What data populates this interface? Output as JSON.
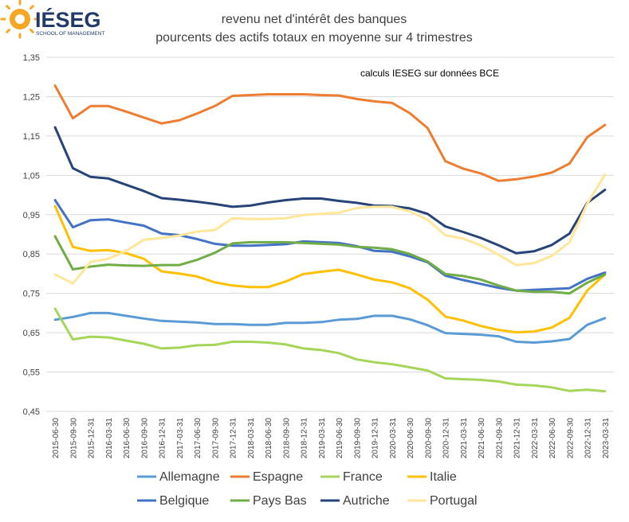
{
  "logo": {
    "name": "IÉSEG",
    "tagline": "SCHOOL OF MANAGEMENT"
  },
  "colors": {
    "Allemagne": "#5B9BD5",
    "Espagne": "#ED7D31",
    "France": "#A5D65A",
    "Italie": "#FFC000",
    "Belgique": "#4472C4",
    "Pays Bas": "#70AD47",
    "Autriche": "#264478",
    "Portugal": "#FFE699",
    "grid": "#D9D9D9",
    "logo": "#F5A623"
  },
  "chart_data": {
    "type": "line",
    "title": "revenu net d'intérêt des banques",
    "subtitle": "pourcents des actifs totaux en moyenne sur 4 trimestres",
    "annotation": "calculs IESEG sur données BCE",
    "xlabel": "",
    "ylabel": "",
    "ylim": [
      0.45,
      1.35
    ],
    "ytick_values": [
      0.45,
      0.55,
      0.65,
      0.75,
      0.85,
      0.95,
      1.05,
      1.15,
      1.25,
      1.35
    ],
    "yticks": [
      "0,45",
      "0,55",
      "0,65",
      "0,75",
      "0,85",
      "0,95",
      "1,05",
      "1,15",
      "1,25",
      "1,35"
    ],
    "grid": true,
    "legend_position": "bottom",
    "categories": [
      "2015-06-30",
      "2015-09-30",
      "2015-12-31",
      "2016-03-31",
      "2016-06-30",
      "2016-09-30",
      "2016-12-31",
      "2017-03-31",
      "2017-06-30",
      "2017-09-30",
      "2017-12-31",
      "2018-03-31",
      "2018-06-30",
      "2018-09-30",
      "2018-12-31",
      "2019-03-31",
      "2019-06-30",
      "2019-09-30",
      "2019-12-31",
      "2020-03-31",
      "2020-06-30",
      "2020-09-30",
      "2020-12-31",
      "2021-03-31",
      "2021-06-30",
      "2021-09-30",
      "2021-12-31",
      "2022-03-31",
      "2022-06-30",
      "2022-09-30",
      "2022-12-31",
      "2023-03-31"
    ],
    "series": [
      {
        "name": "Allemagne",
        "values": [
          0.683,
          0.69,
          0.7,
          0.7,
          0.693,
          0.686,
          0.68,
          0.678,
          0.676,
          0.672,
          0.672,
          0.67,
          0.67,
          0.675,
          0.675,
          0.677,
          0.683,
          0.685,
          0.693,
          0.693,
          0.684,
          0.669,
          0.649,
          0.647,
          0.645,
          0.641,
          0.627,
          0.625,
          0.628,
          0.634,
          0.67,
          0.687
        ]
      },
      {
        "name": "Espagne",
        "values": [
          1.278,
          1.195,
          1.226,
          1.226,
          1.212,
          1.197,
          1.182,
          1.19,
          1.207,
          1.226,
          1.252,
          1.254,
          1.256,
          1.256,
          1.256,
          1.254,
          1.253,
          1.244,
          1.238,
          1.234,
          1.208,
          1.17,
          1.086,
          1.067,
          1.055,
          1.036,
          1.04,
          1.047,
          1.057,
          1.08,
          1.147,
          1.178
        ]
      },
      {
        "name": "France",
        "values": [
          0.711,
          0.633,
          0.64,
          0.638,
          0.63,
          0.622,
          0.61,
          0.612,
          0.618,
          0.619,
          0.627,
          0.627,
          0.625,
          0.62,
          0.61,
          0.606,
          0.598,
          0.582,
          0.575,
          0.57,
          0.562,
          0.554,
          0.534,
          0.532,
          0.53,
          0.526,
          0.518,
          0.516,
          0.511,
          0.502,
          0.505,
          0.501
        ]
      },
      {
        "name": "Italie",
        "values": [
          0.972,
          0.868,
          0.858,
          0.86,
          0.852,
          0.838,
          0.806,
          0.8,
          0.793,
          0.778,
          0.77,
          0.766,
          0.766,
          0.78,
          0.799,
          0.805,
          0.81,
          0.798,
          0.785,
          0.778,
          0.763,
          0.734,
          0.691,
          0.681,
          0.667,
          0.657,
          0.651,
          0.653,
          0.663,
          0.688,
          0.757,
          0.798
        ]
      },
      {
        "name": "Belgique",
        "values": [
          0.987,
          0.918,
          0.936,
          0.938,
          0.93,
          0.922,
          0.902,
          0.898,
          0.888,
          0.876,
          0.871,
          0.871,
          0.873,
          0.875,
          0.882,
          0.88,
          0.878,
          0.87,
          0.858,
          0.856,
          0.844,
          0.829,
          0.795,
          0.784,
          0.774,
          0.764,
          0.757,
          0.759,
          0.761,
          0.763,
          0.787,
          0.803
        ]
      },
      {
        "name": "Pays Bas",
        "values": [
          0.895,
          0.811,
          0.818,
          0.823,
          0.821,
          0.82,
          0.822,
          0.822,
          0.835,
          0.853,
          0.877,
          0.88,
          0.88,
          0.88,
          0.878,
          0.876,
          0.874,
          0.868,
          0.866,
          0.862,
          0.85,
          0.831,
          0.799,
          0.794,
          0.785,
          0.77,
          0.757,
          0.754,
          0.754,
          0.75,
          0.777,
          0.798
        ]
      },
      {
        "name": "Autriche",
        "values": [
          1.172,
          1.068,
          1.046,
          1.042,
          1.026,
          1.01,
          0.992,
          0.988,
          0.983,
          0.977,
          0.97,
          0.973,
          0.981,
          0.987,
          0.991,
          0.991,
          0.985,
          0.98,
          0.973,
          0.972,
          0.966,
          0.952,
          0.92,
          0.906,
          0.891,
          0.872,
          0.852,
          0.857,
          0.873,
          0.902,
          0.98,
          1.013
        ]
      },
      {
        "name": "Portugal",
        "values": [
          0.798,
          0.775,
          0.83,
          0.838,
          0.858,
          0.886,
          0.891,
          0.897,
          0.907,
          0.911,
          0.941,
          0.939,
          0.939,
          0.941,
          0.949,
          0.952,
          0.955,
          0.967,
          0.97,
          0.97,
          0.958,
          0.937,
          0.898,
          0.889,
          0.872,
          0.848,
          0.822,
          0.827,
          0.845,
          0.88,
          0.978,
          1.052
        ]
      }
    ]
  }
}
